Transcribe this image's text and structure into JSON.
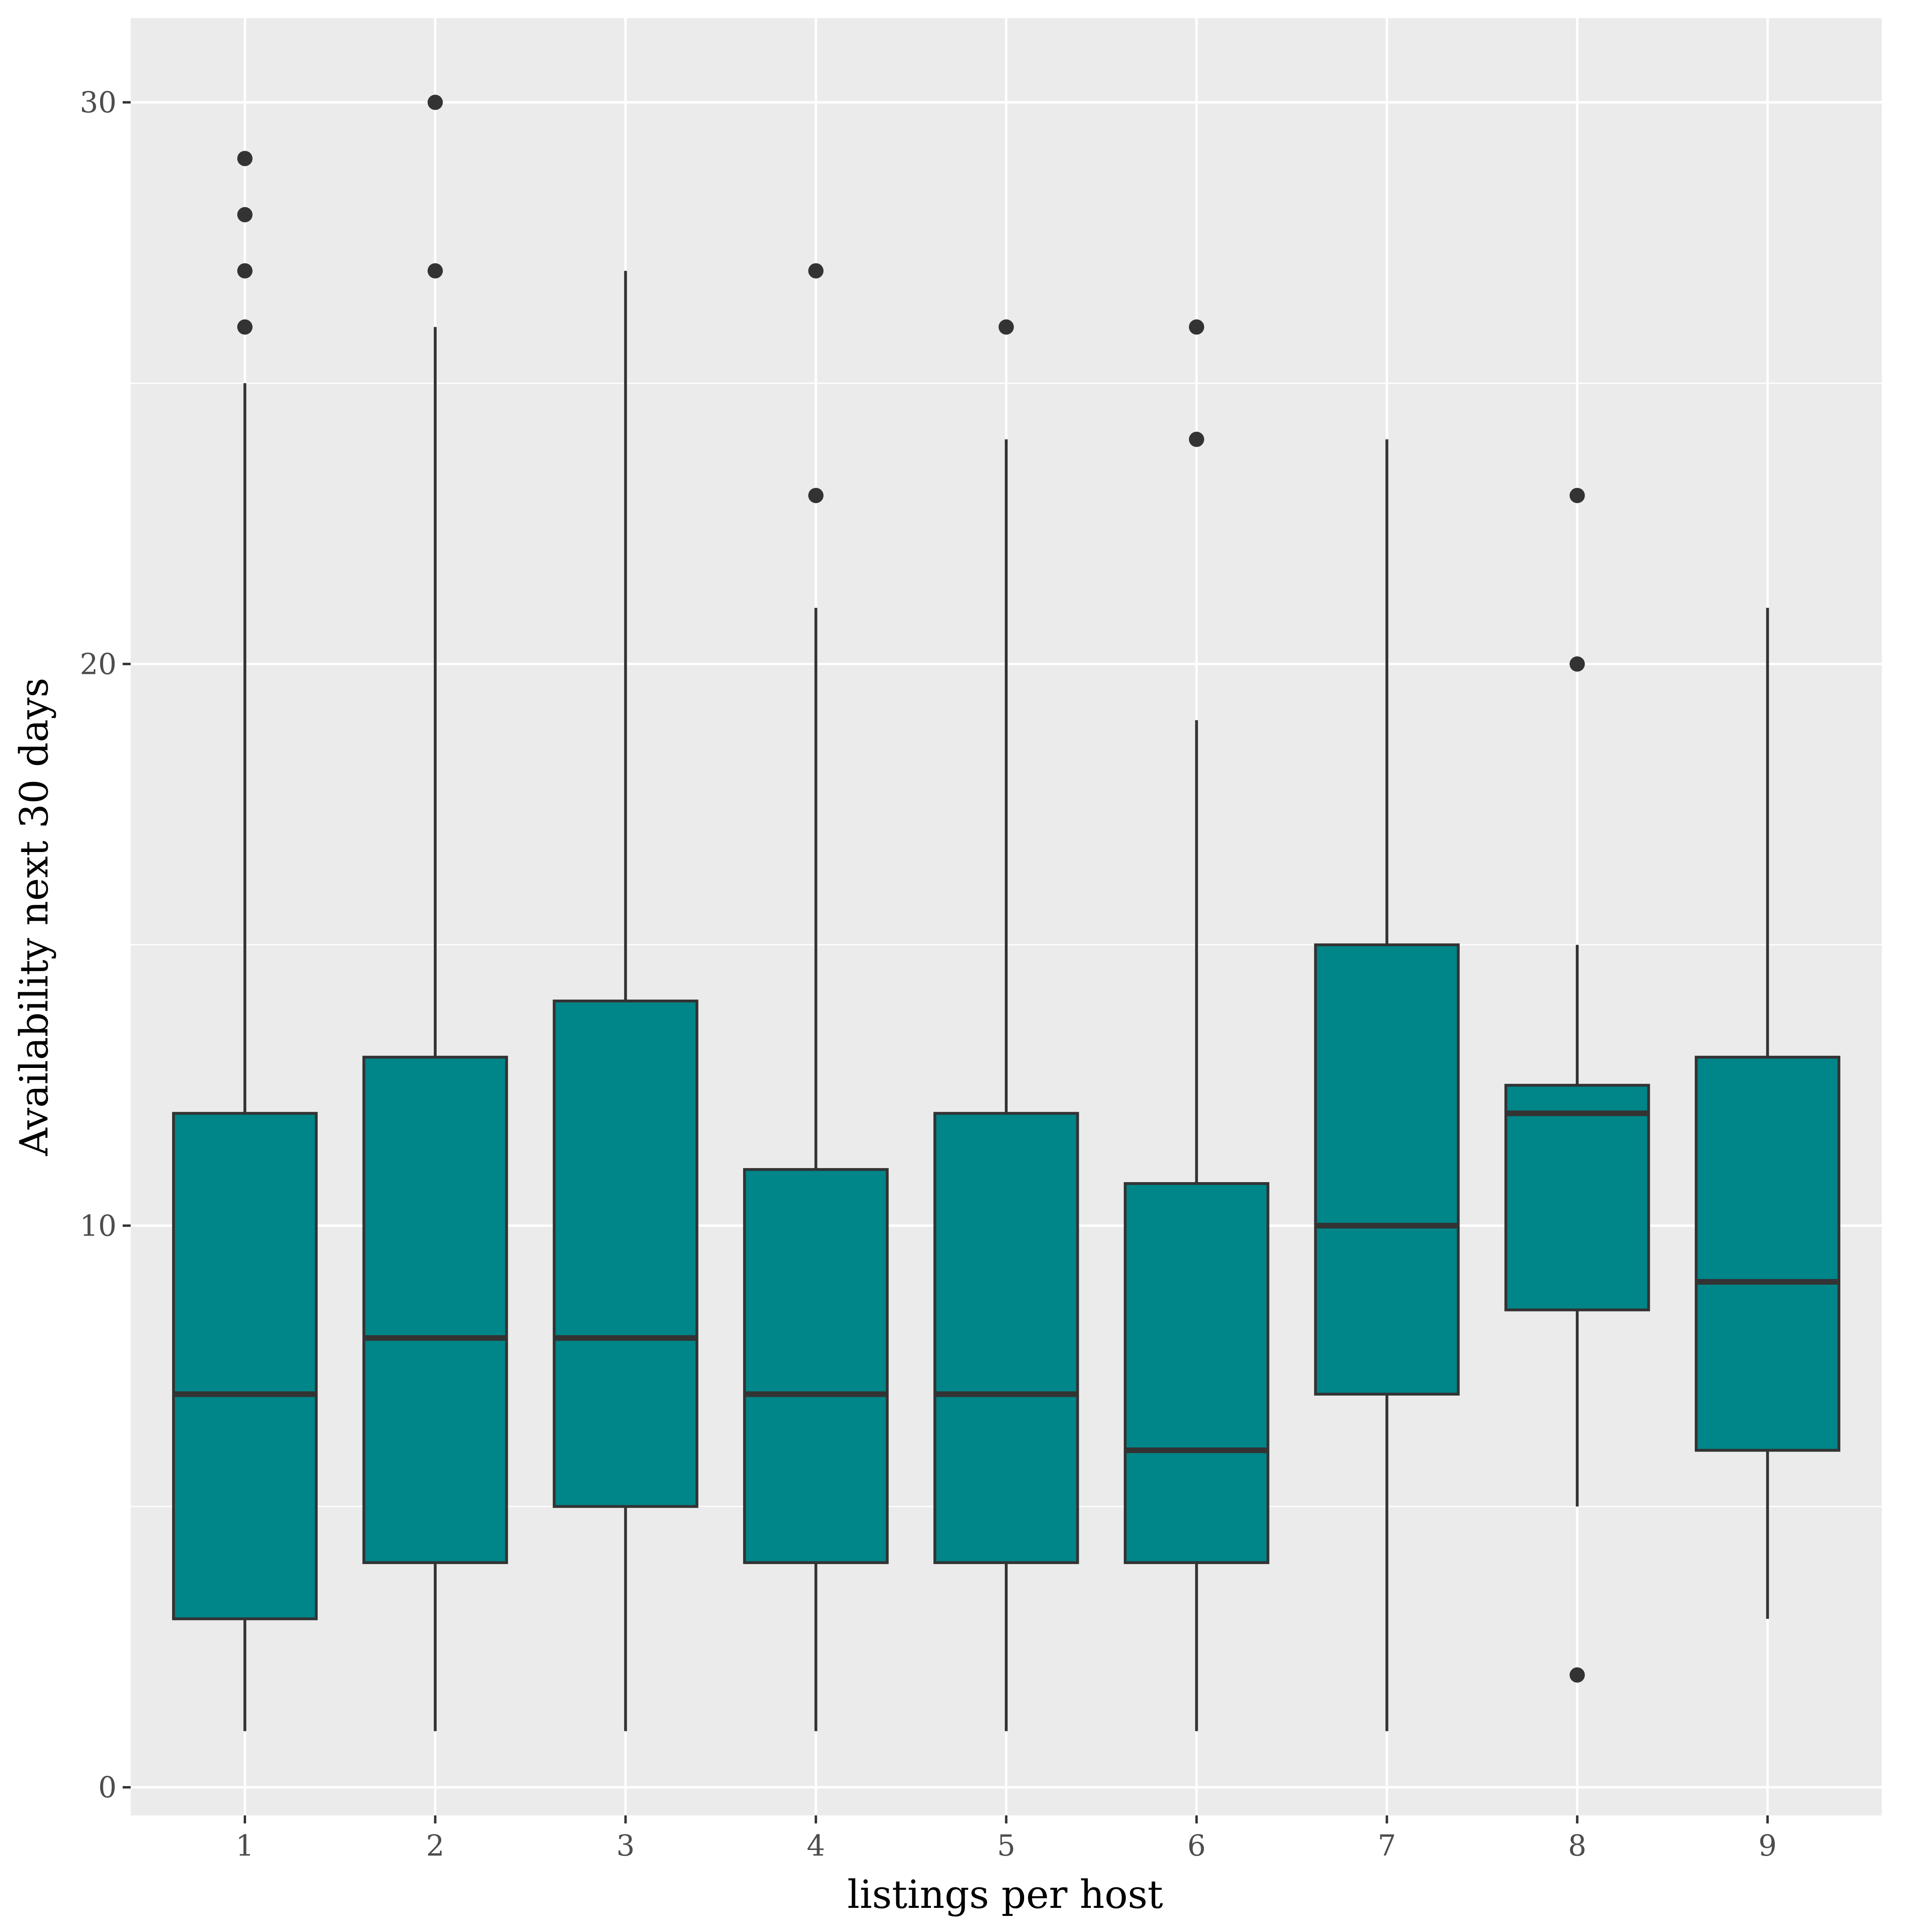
{
  "chart_data": {
    "type": "boxplot",
    "xlabel": "listings per host",
    "ylabel": "Availability next 30 days",
    "categories": [
      "1",
      "2",
      "3",
      "4",
      "5",
      "6",
      "7",
      "8",
      "9"
    ],
    "ylim": [
      -0.5,
      31.5
    ],
    "yticks": [
      0,
      10,
      20,
      30
    ],
    "ytick_labels": [
      "0",
      "10",
      "20",
      "30"
    ],
    "grid": true,
    "legend": "none",
    "boxes": [
      {
        "category": "1",
        "whisker_low": 1,
        "q1": 3,
        "median": 7,
        "q3": 12,
        "whisker_high": 25,
        "outliers": [
          26,
          27,
          28,
          29
        ]
      },
      {
        "category": "2",
        "whisker_low": 1,
        "q1": 4,
        "median": 8,
        "q3": 13,
        "whisker_high": 26,
        "outliers": [
          27,
          30
        ]
      },
      {
        "category": "3",
        "whisker_low": 1,
        "q1": 5,
        "median": 8,
        "q3": 14,
        "whisker_high": 27,
        "outliers": []
      },
      {
        "category": "4",
        "whisker_low": 1,
        "q1": 4,
        "median": 7,
        "q3": 11,
        "whisker_high": 21,
        "outliers": [
          23,
          27
        ]
      },
      {
        "category": "5",
        "whisker_low": 1,
        "q1": 4,
        "median": 7,
        "q3": 12,
        "whisker_high": 24,
        "outliers": [
          26
        ]
      },
      {
        "category": "6",
        "whisker_low": 1,
        "q1": 4,
        "median": 6,
        "q3": 10.75,
        "whisker_high": 19,
        "outliers": [
          24,
          26
        ]
      },
      {
        "category": "7",
        "whisker_low": 1,
        "q1": 7,
        "median": 10,
        "q3": 15,
        "whisker_high": 24,
        "outliers": []
      },
      {
        "category": "8",
        "whisker_low": 5,
        "q1": 8.5,
        "median": 12,
        "q3": 12.5,
        "whisker_high": 15,
        "outliers": [
          2,
          20,
          23
        ]
      },
      {
        "category": "9",
        "whisker_low": 3,
        "q1": 6,
        "median": 9,
        "q3": 13,
        "whisker_high": 21,
        "outliers": []
      }
    ],
    "colors": {
      "fill": "#008589",
      "stroke": "#333333",
      "panel": "#ebebeb",
      "grid": "#ffffff",
      "tick_text": "#4d4d4d",
      "title_text": "#000000"
    }
  }
}
